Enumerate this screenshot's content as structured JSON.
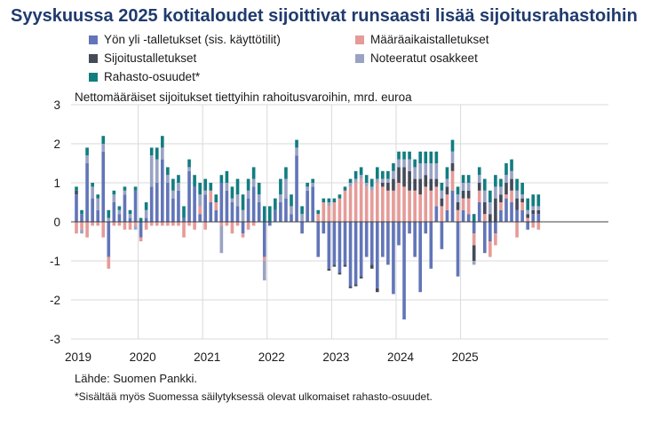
{
  "title": "Syyskuussa 2025 kotitaloudet sijoittivat runsaasti lisää sijoitusrahastoihin",
  "subtitle": "Nettomääräiset sijoitukset tiettyihin rahoitusvaroihin, mrd. euroa",
  "source": "Lähde: Suomen Pankki.",
  "footnote": "*Sisältää myös Suomessa säilytyksessä olevat ulkomaiset rahasto-osuudet.",
  "colors": {
    "yon_yli": "#6275b8",
    "maaraaika": "#e59b98",
    "sijoitus": "#454a59",
    "noteeratut": "#9aa3c4",
    "rahasto": "#127d80"
  },
  "chart_data": {
    "type": "bar",
    "stacked": true,
    "title": "Syyskuussa 2025 kotitaloudet sijoittivat runsaasti lisää sijoitusrahastoihin",
    "ylabel": "Nettomääräiset sijoitukset tiettyihin rahoitusvaroihin, mrd. euroa",
    "ylim": [
      -3,
      3
    ],
    "yticks": [
      "3",
      "2",
      "1",
      "0",
      "-1",
      "-2",
      "-3"
    ],
    "xticks": [
      "2019",
      "2020",
      "2021",
      "2022",
      "2023",
      "2024",
      "2025"
    ],
    "x_start": "2019-01",
    "grid": true,
    "legend_position": "top",
    "series": [
      {
        "name": "Yön yli -talletukset (sis. käyttötilit)",
        "color_key": "yon_yli",
        "values": [
          0.7,
          0.2,
          1.5,
          0.6,
          0.3,
          1.8,
          -0.9,
          0.5,
          0.2,
          0.7,
          0.1,
          0.8,
          -0.4,
          0.1,
          0.9,
          1.0,
          1.6,
          1.0,
          0.6,
          0.8,
          0.1,
          1.3,
          0.9,
          0.2,
          0.7,
          0.5,
          0.3,
          1.0,
          0.8,
          0.5,
          0.4,
          -0.3,
          0.6,
          0.9,
          0.5,
          -0.9,
          -0.1,
          0.3,
          0.5,
          0.6,
          0.2,
          1.7,
          -0.3,
          0.8,
          0.9,
          -0.9,
          -0.3,
          -1.2,
          -1.1,
          -1.3,
          -1.1,
          -1.65,
          -1.6,
          -1.4,
          -0.9,
          -1.1,
          -1.7,
          -0.9,
          -1.1,
          -1.85,
          -0.6,
          -2.5,
          -0.3,
          -0.9,
          -1.8,
          -0.3,
          -1.2,
          0.4,
          -0.7,
          0.3,
          0.8,
          -1.4,
          0.3,
          0.2,
          -0.3,
          0.5,
          -0.8,
          -0.5,
          -0.3,
          0.3,
          0.6,
          0.5,
          0.3,
          0.3,
          -0.2,
          0.2,
          0.2
        ]
      },
      {
        "name": "Määräaikaistalletukset",
        "color_key": "maaraaika",
        "values": [
          -0.3,
          -0.2,
          -0.4,
          -0.1,
          -0.1,
          -0.4,
          -0.3,
          -0.1,
          -0.1,
          -0.2,
          -0.2,
          -0.1,
          -0.1,
          -0.2,
          -0.1,
          -0.1,
          -0.1,
          -0.1,
          -0.1,
          -0.1,
          -0.4,
          -0.1,
          -0.2,
          0.2,
          -0.2,
          0.3,
          0.2,
          -0.1,
          -0.1,
          -0.3,
          -0.1,
          -0.1,
          -0.2,
          -0.1,
          0.0,
          -0.1,
          0.0,
          0.0,
          0.0,
          0.0,
          0.0,
          0.0,
          0.0,
          0.0,
          0.0,
          0.2,
          0.5,
          0.4,
          0.5,
          0.6,
          0.8,
          0.9,
          1.0,
          1.1,
          0.9,
          0.8,
          1.0,
          0.9,
          0.8,
          0.8,
          1.0,
          0.9,
          0.8,
          0.8,
          0.7,
          0.9,
          0.8,
          0.5,
          0.4,
          0.4,
          0.5,
          0.3,
          0.3,
          0.4,
          -0.3,
          0.3,
          0.2,
          -0.4,
          -0.3,
          0.2,
          0.1,
          0.3,
          -0.4,
          0.2,
          0.1,
          -0.15,
          -0.2
        ]
      },
      {
        "name": "Sijoitustalletukset",
        "color_key": "sijoitus",
        "values": [
          0.1,
          0.0,
          0.0,
          0.0,
          0.0,
          0.0,
          0.0,
          0.0,
          0.0,
          0.0,
          0.0,
          0.0,
          0.0,
          0.0,
          0.0,
          0.0,
          0.0,
          0.0,
          0.0,
          0.0,
          0.0,
          0.0,
          0.0,
          0.0,
          0.0,
          0.0,
          0.0,
          0.0,
          0.0,
          0.0,
          0.0,
          0.0,
          0.0,
          0.0,
          0.0,
          0.0,
          0.0,
          0.0,
          0.0,
          0.0,
          0.0,
          0.0,
          0.0,
          0.0,
          0.0,
          0.0,
          0.0,
          -0.05,
          -0.05,
          -0.05,
          -0.05,
          -0.05,
          -0.05,
          -0.05,
          0.0,
          -0.1,
          -0.1,
          0.1,
          0.2,
          0.3,
          0.4,
          0.5,
          0.5,
          0.3,
          0.4,
          0.3,
          0.3,
          0.2,
          0.2,
          0.2,
          0.2,
          0.2,
          0.2,
          0.2,
          -0.4,
          0.2,
          0.3,
          0.2,
          0.6,
          0.2,
          0.3,
          0.3,
          0.3,
          0.1,
          0.1,
          0.1,
          0.1
        ]
      },
      {
        "name": "Noteeratut osakkeet",
        "color_key": "noteeratut",
        "values": [
          0.0,
          -0.1,
          0.2,
          0.3,
          0.3,
          0.2,
          0.1,
          0.2,
          0.1,
          0.1,
          0.1,
          -0.1,
          0.0,
          0.2,
          0.8,
          0.6,
          0.3,
          0.2,
          0.2,
          0.2,
          0.0,
          0.1,
          0.0,
          0.3,
          0.1,
          0.0,
          0.0,
          -0.7,
          0.2,
          0.1,
          0.3,
          0.3,
          0.2,
          0.2,
          0.2,
          -0.5,
          0.0,
          0.0,
          0.2,
          0.5,
          0.2,
          0.2,
          0.2,
          0.1,
          0.1,
          0.0,
          0.0,
          0.1,
          0.0,
          0.0,
          0.0,
          0.1,
          0.1,
          0.1,
          0.1,
          0.1,
          0.1,
          0.1,
          0.1,
          0.2,
          0.2,
          0.2,
          0.3,
          0.3,
          0.4,
          0.3,
          0.4,
          0.4,
          0.2,
          0.2,
          0.3,
          0.2,
          0.2,
          0.2,
          -0.1,
          0.2,
          0.3,
          0.3,
          0.3,
          0.2,
          0.2,
          0.2,
          0.2,
          0.1,
          0.1,
          0.1,
          0.1
        ]
      },
      {
        "name": "Rahasto-osuudet*",
        "color_key": "rahasto",
        "values": [
          0.1,
          0.1,
          0.2,
          0.1,
          0.1,
          0.2,
          0.2,
          0.1,
          0.1,
          0.1,
          0.1,
          0.1,
          0.1,
          0.2,
          0.2,
          0.3,
          0.3,
          0.2,
          0.3,
          0.2,
          0.3,
          0.2,
          0.3,
          0.3,
          0.3,
          0.2,
          0.2,
          0.2,
          0.3,
          0.3,
          0.4,
          0.4,
          0.3,
          0.3,
          0.3,
          0.4,
          0.4,
          0.3,
          0.4,
          0.3,
          0.3,
          0.2,
          0.2,
          0.1,
          0.1,
          0.1,
          0.1,
          0.1,
          0.1,
          0.1,
          0.1,
          0.1,
          0.2,
          0.2,
          0.2,
          0.2,
          0.3,
          0.2,
          0.2,
          0.2,
          0.2,
          0.2,
          0.2,
          0.2,
          0.3,
          0.3,
          0.3,
          0.3,
          0.2,
          0.3,
          0.3,
          0.2,
          0.2,
          0.2,
          0.2,
          0.2,
          0.3,
          0.3,
          0.3,
          0.2,
          0.3,
          0.3,
          0.3,
          0.3,
          0.3,
          0.3,
          0.3
        ]
      }
    ]
  }
}
